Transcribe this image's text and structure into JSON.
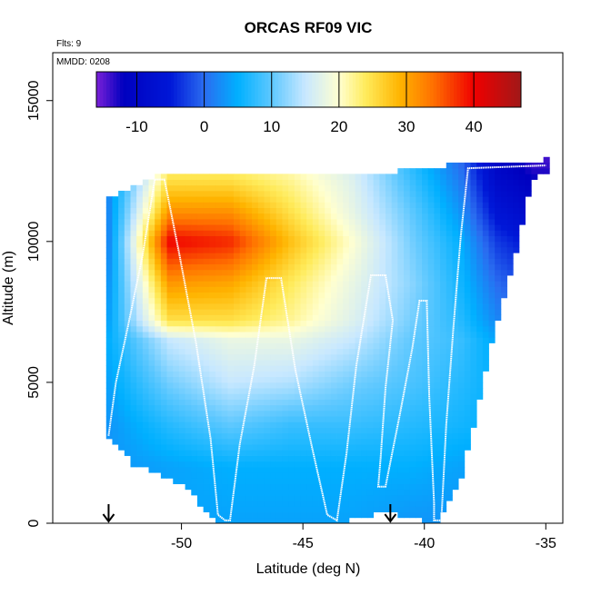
{
  "chart_data": {
    "type": "heatmap",
    "title": "ORCAS RF09 VIC",
    "annotations": {
      "flights": "Flts: 9",
      "date": "MMDD: 0208"
    },
    "xlabel": "Latitude (deg N)",
    "ylabel": "Altitude (m)",
    "xlim": [
      -55.3,
      -34.3
    ],
    "ylim": [
      0,
      16700
    ],
    "xticks": [
      -50,
      -45,
      -40,
      -35
    ],
    "xtick_labels": [
      "-50",
      "-45",
      "-40",
      "-35"
    ],
    "yticks": [
      0,
      5000,
      10000,
      15000
    ],
    "ytick_labels": [
      "0",
      "5000",
      "10000",
      "15000"
    ],
    "grid": false,
    "colorbar": {
      "range": [
        -16,
        47
      ],
      "ticks": [
        -10,
        0,
        10,
        20,
        30,
        40
      ],
      "tick_labels": [
        "-10",
        "0",
        "10",
        "20",
        "30",
        "40"
      ],
      "stops": [
        {
          "v": -16,
          "c": "#7b20d8"
        },
        {
          "v": -12,
          "c": "#0000bf"
        },
        {
          "v": -5,
          "c": "#0018d8"
        },
        {
          "v": 0,
          "c": "#2a6cf0"
        },
        {
          "v": 5,
          "c": "#00b0ff"
        },
        {
          "v": 10,
          "c": "#5ec8ff"
        },
        {
          "v": 15,
          "c": "#c8e8ff"
        },
        {
          "v": 20,
          "c": "#ffffd0"
        },
        {
          "v": 24,
          "c": "#ffeb5a"
        },
        {
          "v": 29,
          "c": "#ffb400"
        },
        {
          "v": 34,
          "c": "#ff7000"
        },
        {
          "v": 40,
          "c": "#f00000"
        },
        {
          "v": 47,
          "c": "#a01818"
        }
      ]
    },
    "data_domain": {
      "lat_step": 0.25,
      "alt_step": 200,
      "top_boundary": [
        [
          -53,
          11500
        ],
        [
          -51,
          12300
        ],
        [
          -45,
          12400
        ],
        [
          -41,
          12500
        ],
        [
          -38.2,
          12800
        ],
        [
          -35,
          12900
        ]
      ],
      "bottom_boundary": [
        [
          -53.1,
          3100
        ],
        [
          -52,
          2100
        ],
        [
          -50,
          1400
        ],
        [
          -48.5,
          0
        ],
        [
          -43.5,
          0
        ],
        [
          -41.7,
          400
        ],
        [
          -39.5,
          0
        ],
        [
          -38.5,
          1500
        ],
        [
          -37.7,
          4500
        ],
        [
          -37,
          7200
        ],
        [
          -36.4,
          9000
        ],
        [
          -35.9,
          11000
        ],
        [
          -35.4,
          12500
        ]
      ]
    },
    "temperature_profile": {
      "altitudes": [
        0,
        2000,
        3500,
        5000,
        6500,
        7200,
        8500,
        10000,
        11000,
        12200,
        12800
      ],
      "latitudes": [
        -53,
        -50.5,
        -48,
        -45.5,
        -43,
        -40.5,
        -38.5,
        -37,
        -35.5
      ],
      "values": [
        [
          4,
          3,
          3,
          4,
          5,
          4,
          3,
          2,
          2,
          2,
          1
        ],
        [
          4,
          4,
          7,
          11,
          15,
          25,
          31,
          40,
          32,
          25,
          22
        ],
        [
          4,
          5,
          10,
          15,
          18,
          25,
          30,
          38,
          32,
          25,
          22
        ],
        [
          4,
          5,
          8,
          14,
          18,
          22,
          24,
          28,
          25,
          22,
          20
        ],
        [
          4,
          5,
          8,
          11,
          15,
          17,
          18,
          20,
          18,
          17,
          16
        ],
        [
          3,
          5,
          7,
          9,
          10,
          11,
          12,
          11,
          10,
          8,
          7
        ],
        [
          3,
          4,
          6,
          7,
          8,
          7,
          6,
          5,
          3,
          1,
          0
        ],
        [
          3,
          4,
          5,
          5,
          4,
          2,
          0,
          -3,
          -6,
          -9,
          -10
        ],
        [
          3,
          4,
          4,
          3,
          1,
          -1,
          -3,
          -6,
          -9,
          -12,
          -14
        ]
      ]
    },
    "flight_track": [
      [
        -53.0,
        3100
      ],
      [
        -52.7,
        5000
      ],
      [
        -52.2,
        7000
      ],
      [
        -51.6,
        9500
      ],
      [
        -51.1,
        12200
      ],
      [
        -50.7,
        12200
      ],
      [
        -50.1,
        9600
      ],
      [
        -49.4,
        6400
      ],
      [
        -48.8,
        3000
      ],
      [
        -48.5,
        300
      ],
      [
        -48.2,
        100
      ],
      [
        -48.0,
        100
      ],
      [
        -47.6,
        2800
      ],
      [
        -47.0,
        5600
      ],
      [
        -46.5,
        8700
      ],
      [
        -45.9,
        8700
      ],
      [
        -45.3,
        5400
      ],
      [
        -44.6,
        2600
      ],
      [
        -44.0,
        300
      ],
      [
        -43.6,
        100
      ],
      [
        -43.2,
        2500
      ],
      [
        -42.8,
        5600
      ],
      [
        -42.2,
        8800
      ],
      [
        -41.6,
        8800
      ],
      [
        -41.3,
        7200
      ],
      [
        -41.6,
        4800
      ],
      [
        -41.8,
        2300
      ],
      [
        -41.9,
        1300
      ],
      [
        -41.6,
        1300
      ],
      [
        -41.0,
        3900
      ],
      [
        -40.5,
        6200
      ],
      [
        -40.2,
        7900
      ],
      [
        -39.9,
        7900
      ],
      [
        -39.8,
        4500
      ],
      [
        -39.6,
        700
      ],
      [
        -39.6,
        100
      ],
      [
        -39.3,
        100
      ],
      [
        -39.1,
        3500
      ],
      [
        -38.8,
        7000
      ],
      [
        -38.5,
        10200
      ],
      [
        -38.2,
        12600
      ],
      [
        -35.0,
        12700
      ]
    ],
    "track_color": "#ffffff",
    "arrows_at_latitude": [
      -53.0,
      -41.4
    ]
  }
}
